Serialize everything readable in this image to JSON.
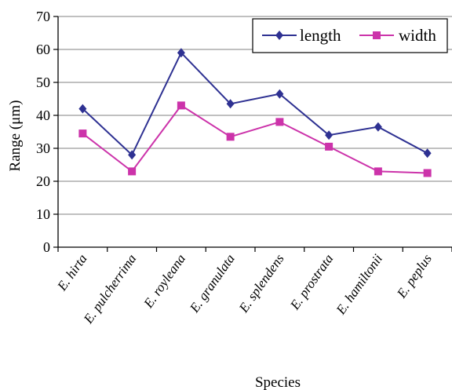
{
  "chart_data": {
    "type": "line",
    "title": "",
    "xlabel": "Species",
    "ylabel": "Range (μm)",
    "ylim": [
      0,
      70
    ],
    "yticks": [
      "0",
      "10",
      "20",
      "30",
      "40",
      "50",
      "60",
      "70"
    ],
    "grid": "horizontal",
    "legend_position": "top-right",
    "categories": [
      "E. hirta",
      "E. pulcherrima",
      "E. royleana",
      "E. granulata",
      "E. splendens",
      "E. prostrata",
      "E. hamiltonii",
      "E. peplus"
    ],
    "series": [
      {
        "name": "length",
        "color": "#2e3192",
        "marker": "diamond",
        "values": [
          42,
          28,
          59,
          43.5,
          46.5,
          34,
          36.5,
          28.5
        ]
      },
      {
        "name": "width",
        "color": "#cc33aa",
        "marker": "square",
        "values": [
          34.5,
          23,
          43,
          33.5,
          38,
          30.5,
          23,
          22.5
        ]
      }
    ]
  }
}
